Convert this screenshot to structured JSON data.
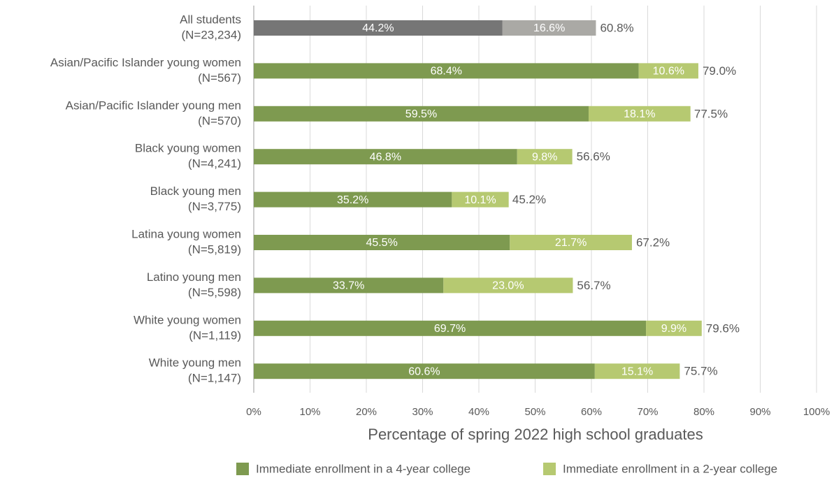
{
  "chart_data": {
    "type": "stacked_barh",
    "categories": [
      [
        "All students",
        "(N=23,234)"
      ],
      [
        "Asian/Pacific Islander young women",
        "(N=567)"
      ],
      [
        "Asian/Pacific Islander young men",
        "(N=570)"
      ],
      [
        "Black young women",
        "(N=4,241)"
      ],
      [
        "Black young men",
        "(N=3,775)"
      ],
      [
        "Latina young women",
        "(N=5,819)"
      ],
      [
        "Latino young men",
        "(N=5,598)"
      ],
      [
        "White young women",
        "(N=1,119)"
      ],
      [
        "White young men",
        "(N=1,147)"
      ]
    ],
    "series": [
      {
        "name": "Immediate enrollment in a 4-year college",
        "color": "#7e9a50",
        "colors": [
          "#767676",
          "#7e9a50",
          "#7e9a50",
          "#7e9a50",
          "#7e9a50",
          "#7e9a50",
          "#7e9a50",
          "#7e9a50",
          "#7e9a50"
        ],
        "values": [
          44.2,
          68.4,
          59.5,
          46.8,
          35.2,
          45.5,
          33.7,
          69.7,
          60.6
        ],
        "value_labels": [
          "44.2%",
          "68.4%",
          "59.5%",
          "46.8%",
          "35.2%",
          "45.5%",
          "33.7%",
          "69.7%",
          "60.6%"
        ]
      },
      {
        "name": "Immediate enrollment in a 2-year college",
        "color": "#b6c971",
        "colors": [
          "#aaa9a5",
          "#b6c971",
          "#b6c971",
          "#b6c971",
          "#b6c971",
          "#b6c971",
          "#b6c971",
          "#b6c971",
          "#b6c971"
        ],
        "values": [
          16.6,
          10.6,
          18.1,
          9.8,
          10.1,
          21.7,
          23.0,
          9.9,
          15.1
        ],
        "value_labels": [
          "16.6%",
          "10.6%",
          "18.1%",
          "9.8%",
          "10.1%",
          "21.7%",
          "23.0%",
          "9.9%",
          "15.1%"
        ]
      }
    ],
    "totals": [
      60.8,
      79.0,
      77.5,
      56.6,
      45.2,
      67.2,
      56.7,
      79.6,
      75.7
    ],
    "total_labels": [
      "60.8%",
      "79.0%",
      "77.5%",
      "56.6%",
      "45.2%",
      "67.2%",
      "56.7%",
      "79.6%",
      "75.7%"
    ],
    "xlabel": "Percentage of spring 2022 high school graduates",
    "xlim": [
      0,
      100
    ],
    "xticks": [
      {
        "value": 0,
        "label": "0%"
      },
      {
        "value": 10,
        "label": "10%"
      },
      {
        "value": 20,
        "label": "20%"
      },
      {
        "value": 30,
        "label": "30%"
      },
      {
        "value": 40,
        "label": "40%"
      },
      {
        "value": 50,
        "label": "50%"
      },
      {
        "value": 60,
        "label": "60%"
      },
      {
        "value": 70,
        "label": "70%"
      },
      {
        "value": 80,
        "label": "80%"
      },
      {
        "value": 90,
        "label": "90%"
      },
      {
        "value": 100,
        "label": "100%"
      }
    ],
    "grid": true,
    "legend": "bottom"
  }
}
